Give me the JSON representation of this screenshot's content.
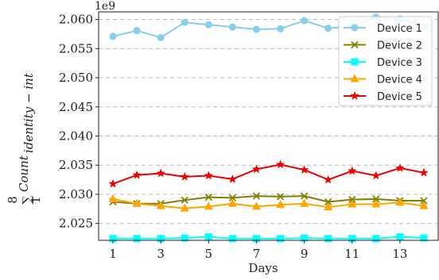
{
  "chart_data": {
    "type": "line",
    "offset_text": "1e9",
    "xlabel": "Days",
    "ylabel": {
      "sum_top": "8",
      "sum_sign": "∑",
      "sum_bottom": "1",
      "main": "Count",
      "sub": "identity − int"
    },
    "xlim": [
      0.4,
      14.6
    ],
    "ylim": [
      2.0221,
      2.0613
    ],
    "x_ticks": [
      1,
      3,
      5,
      7,
      9,
      11,
      13
    ],
    "x_tick_labels": [
      "1",
      "3",
      "5",
      "7",
      "9",
      "11",
      "13"
    ],
    "y_ticks": [
      2.025,
      2.03,
      2.035,
      2.04,
      2.045,
      2.05,
      2.055,
      2.06
    ],
    "y_tick_labels": [
      "2.025",
      "2.030",
      "2.035",
      "2.040",
      "2.045",
      "2.050",
      "2.055",
      "2.060"
    ],
    "grid": "horizontal dashed",
    "legend_position": "top-right",
    "x": [
      1,
      2,
      3,
      4,
      5,
      6,
      7,
      8,
      9,
      10,
      11,
      12,
      13,
      14
    ],
    "series": [
      {
        "name": "Device 1",
        "color": "#87ceeb",
        "marker": "circle",
        "values": [
          2.0571,
          2.0581,
          2.0569,
          2.0595,
          2.0591,
          2.0587,
          2.0583,
          2.0584,
          2.0598,
          2.0585,
          2.0588,
          2.0604,
          2.0601,
          2.0588
        ]
      },
      {
        "name": "Device 2",
        "color": "#808000",
        "marker": "x",
        "values": [
          2.0287,
          2.0284,
          2.0284,
          2.029,
          2.0295,
          2.0294,
          2.0297,
          2.0296,
          2.0297,
          2.0287,
          2.0291,
          2.0292,
          2.0289,
          2.0289
        ]
      },
      {
        "name": "Device 3",
        "color": "#00ffff",
        "marker": "square",
        "values": [
          2.0224,
          2.0224,
          2.0224,
          2.0225,
          2.0227,
          2.0224,
          2.0224,
          2.0224,
          2.0225,
          2.0224,
          2.0224,
          2.0224,
          2.0227,
          2.0225
        ]
      },
      {
        "name": "Device 4",
        "color": "#ffa500",
        "marker": "triangle",
        "values": [
          2.0292,
          2.0284,
          2.028,
          2.0276,
          2.0279,
          2.0284,
          2.0279,
          2.0282,
          2.0284,
          2.0278,
          2.0283,
          2.0283,
          2.0286,
          2.028
        ]
      },
      {
        "name": "Device 5",
        "color": "#ee0000",
        "marker": "star",
        "values": [
          2.0318,
          2.0333,
          2.0336,
          2.033,
          2.0332,
          2.0326,
          2.0343,
          2.0351,
          2.0342,
          2.0325,
          2.034,
          2.0332,
          2.0345,
          2.0337
        ]
      }
    ]
  }
}
